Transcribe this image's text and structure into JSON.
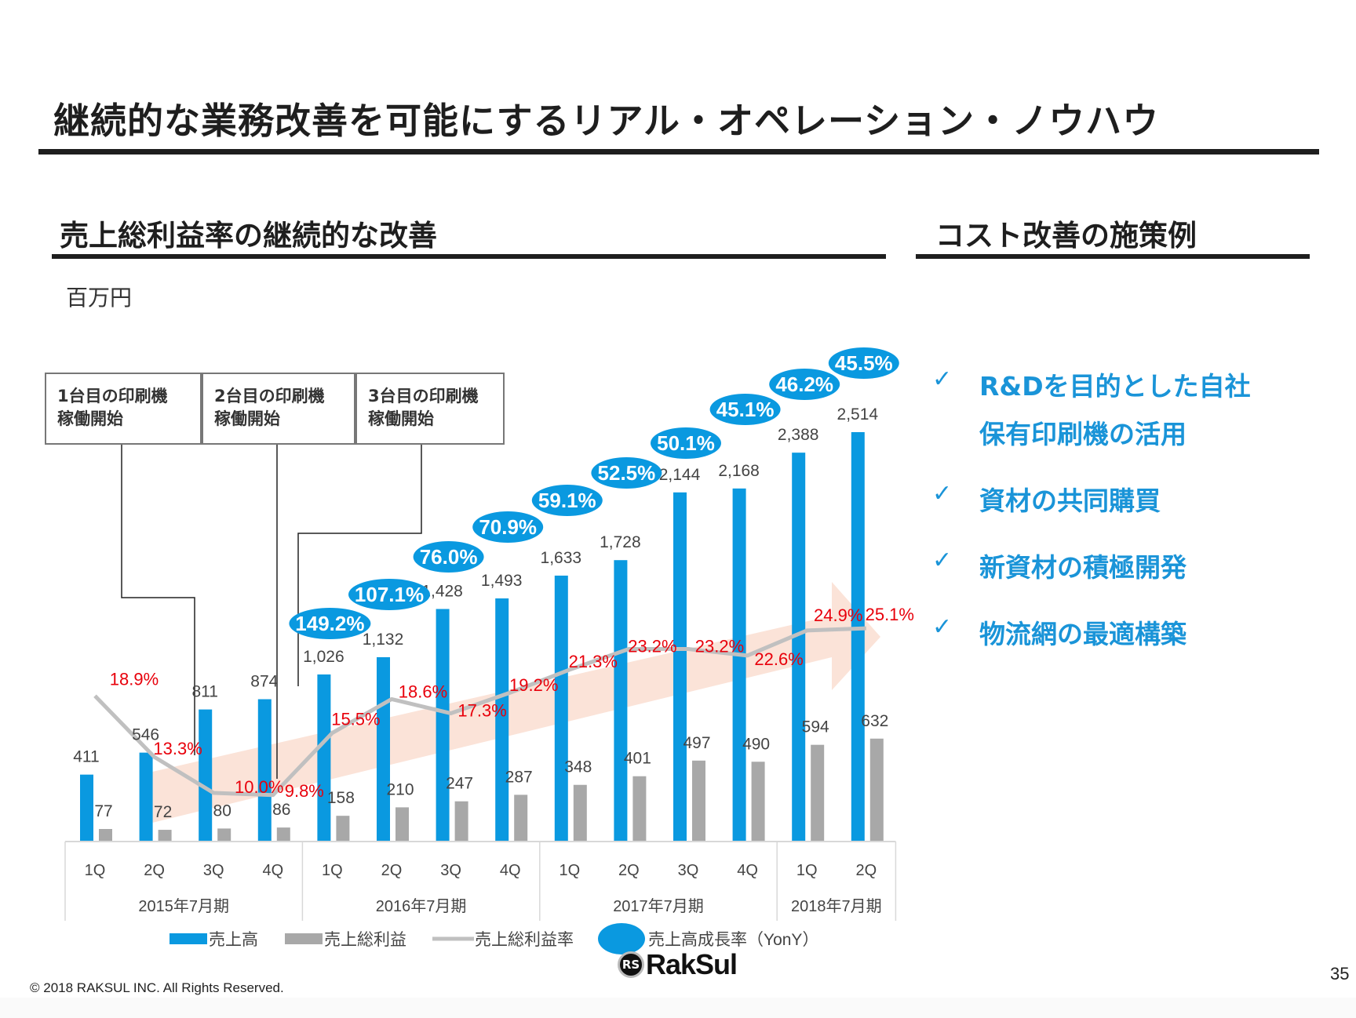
{
  "slide": {
    "title": "継続的な業務改善を可能にするリアル・オペレーション・ノウハウ",
    "left_heading": "売上総利益率の継続的な改善",
    "right_heading": "コスト改善の施策例",
    "unit_label": "百万円",
    "footer": "© 2018 RAKSUL INC. All Rights Reserved.",
    "page_number": "35",
    "logo": {
      "mark": "RS",
      "word": "RakSul"
    },
    "colors": {
      "revenue": "#0a99e0",
      "gross_profit": "#a8a8a8",
      "margin_line": "#c0c0c0",
      "margin_label": "#e8000b",
      "growth_bubble": "#0a99e0",
      "trend_arrow": "#fbe3d8",
      "bullet": "#1a94d8"
    }
  },
  "annotations": [
    {
      "line1": "1台目の印刷機",
      "line2": "稼働開始"
    },
    {
      "line1": "2台目の印刷機",
      "line2": "稼働開始"
    },
    {
      "line1": "3台目の印刷機",
      "line2": "稼働開始"
    }
  ],
  "bullets": [
    {
      "icon": "check-icon",
      "glyph": "✓",
      "lines": [
        "R&Dを目的とした自社",
        "保有印刷機の活用"
      ]
    },
    {
      "icon": "check-icon",
      "glyph": "✓",
      "lines": [
        "資材の共同購買"
      ]
    },
    {
      "icon": "check-icon",
      "glyph": "✓",
      "lines": [
        "新資材の積極開発"
      ]
    },
    {
      "icon": "check-icon",
      "glyph": "✓",
      "lines": [
        "物流網の最適構築"
      ]
    }
  ],
  "chart_data": {
    "type": "bar",
    "title": "売上総利益率の継続的な改善",
    "ylabel": "百万円",
    "xlabel": "",
    "ylim": [
      0,
      2600
    ],
    "grid": false,
    "legend_position": "bottom",
    "categories": [
      "1Q",
      "2Q",
      "3Q",
      "4Q",
      "1Q",
      "2Q",
      "3Q",
      "4Q",
      "1Q",
      "2Q",
      "3Q",
      "4Q",
      "1Q",
      "2Q"
    ],
    "groups": [
      {
        "label": "2015年7月期",
        "count": 4
      },
      {
        "label": "2016年7月期",
        "count": 4
      },
      {
        "label": "2017年7月期",
        "count": 4
      },
      {
        "label": "2018年7月期",
        "count": 2
      }
    ],
    "series": [
      {
        "name": "売上高",
        "type": "bar",
        "values": [
          411,
          546,
          811,
          874,
          1026,
          1132,
          1428,
          1493,
          1633,
          1728,
          2144,
          2168,
          2388,
          2514
        ],
        "labels": [
          "411",
          "546",
          "811",
          "874",
          "1,026",
          "1,132",
          "1,428",
          "1,493",
          "1,633",
          "1,728",
          "2,144",
          "2,168",
          "2,388",
          "2,514"
        ]
      },
      {
        "name": "売上総利益",
        "type": "bar",
        "values": [
          77,
          72,
          80,
          86,
          158,
          210,
          247,
          287,
          348,
          401,
          497,
          490,
          594,
          632
        ],
        "labels": [
          "77",
          "72",
          "80",
          "86",
          "158",
          "210",
          "247",
          "287",
          "348",
          "401",
          "497",
          "490",
          "594",
          "632"
        ]
      },
      {
        "name": "売上総利益率",
        "type": "line",
        "unit": "%",
        "values": [
          18.9,
          13.3,
          10.0,
          9.8,
          15.5,
          18.6,
          17.3,
          19.2,
          21.3,
          23.2,
          23.2,
          22.6,
          24.9,
          25.1
        ],
        "labels": [
          "18.9%",
          "13.3%",
          "10.0%",
          "9.8%",
          "15.5%",
          "18.6%",
          "17.3%",
          "19.2%",
          "21.3%",
          "23.2%",
          "23.2%",
          "22.6%",
          "24.9%",
          "25.1%"
        ]
      },
      {
        "name": "売上高成長率（YonY）",
        "type": "bubble",
        "unit": "%",
        "values": [
          null,
          null,
          null,
          null,
          149.2,
          107.1,
          76.0,
          70.9,
          59.1,
          52.5,
          50.1,
          45.1,
          46.2,
          45.5
        ],
        "labels": [
          null,
          null,
          null,
          null,
          "149.2%",
          "107.1%",
          "76.0%",
          "70.9%",
          "59.1%",
          "52.5%",
          "50.1%",
          "45.1%",
          "46.2%",
          "45.5%"
        ]
      }
    ],
    "legend": [
      "売上高",
      "売上総利益",
      "売上総利益率",
      "売上高成長率（YonY）"
    ],
    "annotations": [
      "1台目の印刷機 稼働開始 (2015/3Q)",
      "2台目の印刷機 稼働開始 (2015/4Q)",
      "3台目の印刷機 稼働開始 (2016/1Q)"
    ]
  }
}
